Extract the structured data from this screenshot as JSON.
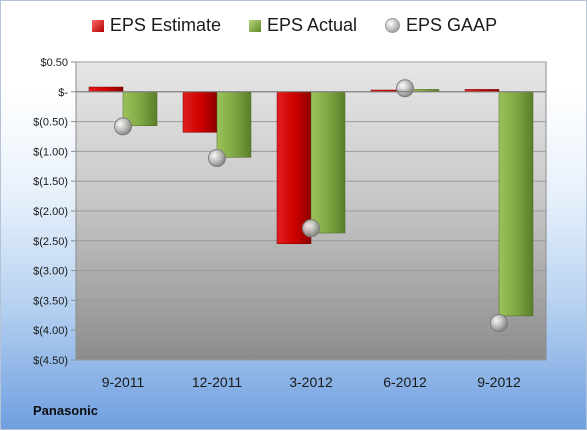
{
  "chart_data": {
    "type": "bar",
    "categories": [
      "9-2011",
      "12-2011",
      "3-2012",
      "6-2012",
      "9-2012"
    ],
    "series": [
      {
        "name": "EPS Estimate",
        "values": [
          0.08,
          -0.68,
          -2.55,
          0.03,
          0.04
        ]
      },
      {
        "name": "EPS Actual",
        "values": [
          -0.57,
          -1.1,
          -2.37,
          0.04,
          -3.76
        ]
      },
      {
        "name": "EPS GAAP",
        "values": [
          -0.58,
          -1.11,
          -2.29,
          0.06,
          -3.88
        ]
      }
    ],
    "ylim": [
      -4.5,
      0.5
    ],
    "yticks": [
      0.5,
      0,
      -0.5,
      -1.0,
      -1.5,
      -2.0,
      -2.5,
      -3.0,
      -3.5,
      -4.0,
      -4.5
    ],
    "ytick_labels": [
      "$0.50",
      "$-",
      "$(0.50)",
      "$(1.00)",
      "$(1.50)",
      "$(2.00)",
      "$(2.50)",
      "$(3.00)",
      "$(3.50)",
      "$(4.00)",
      "$(4.50)"
    ],
    "grid": true,
    "legend_position": "top",
    "colors": {
      "estimate": "#c00000",
      "actual": "#7ea33e",
      "gaap": "#a6a6a6"
    }
  },
  "legend": {
    "estimate": "EPS Estimate",
    "actual": "EPS Actual",
    "gaap": "EPS GAAP"
  },
  "footer": {
    "company": "Panasonic"
  }
}
